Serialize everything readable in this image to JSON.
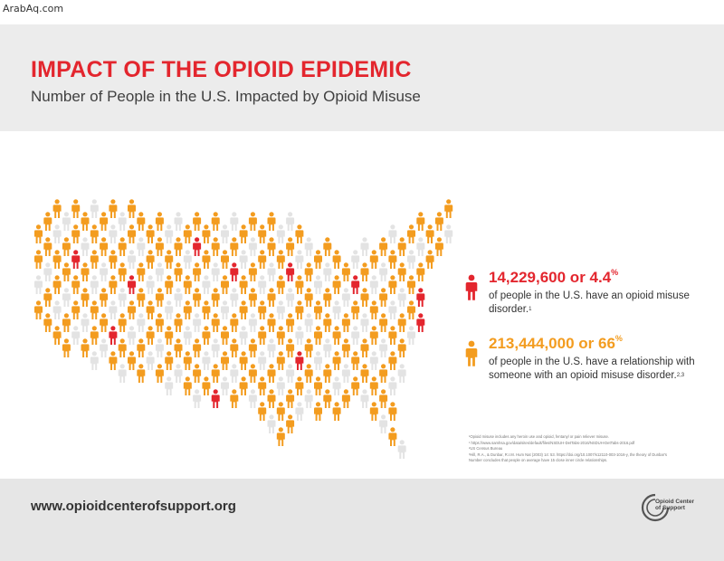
{
  "watermark": "ArabAq.com",
  "header": {
    "title": "IMPACT OF THE OPIOID EPIDEMIC",
    "subtitle": "Number of People in the U.S. Impacted by Opioid Misuse"
  },
  "stats": [
    {
      "value": "14,229,600 or 4.4",
      "unit": "%",
      "text": "of people in the U.S. have an opioid misuse disorder.",
      "ref": "1",
      "color": "#e3262e",
      "icon": "person-icon"
    },
    {
      "value": "213,444,000 or 66",
      "unit": "%",
      "text": "of people in the U.S. have a relationship with someone with an opioid misuse disorder.",
      "ref": "2,3",
      "color": "#f39c1f",
      "icon": "person-icon"
    }
  ],
  "footnotes": [
    "¹Opioid misuse includes any heroin use and opioid, fentanyl or pain reliever misuse.",
    "¹ https://www.samhsa.gov/data/sites/default/files/NSDUH-DetTabs-2016/NSDUH-DetTabs-2016.pdf",
    "²US Census Bureau",
    "³Hill, R.A., & Dunbar, R.I.M. Hum Nat (2003) 14: 53. https://doi.org/10.1007/s12110-003-1016-y, the theory of Dunbar's",
    "  Number concludes that people on average have 15 close inner circle relationships."
  ],
  "footer": {
    "url": "www.opioidcenterofsupport.org",
    "logo_text": "Opioid Center of Support"
  },
  "colors": {
    "red": "#e3262e",
    "orange": "#f39c1f",
    "grey": "#e3e3e3"
  }
}
